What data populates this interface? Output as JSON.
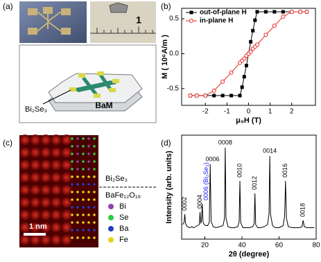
{
  "panel_labels": [
    "(a)",
    "(b)",
    "(c)",
    "(d)"
  ],
  "panel_a": {
    "ruler_label": "1",
    "substrate_label": "BaM",
    "film_label": "Bi₂Se₃"
  },
  "panel_c": {
    "top_layer": "Bi₂Se₃",
    "bottom_layer": "BaFe₁₂O₁₉",
    "scale_bar": "1 nm",
    "legend": [
      {
        "name": "Bi",
        "color": "#8e44ad"
      },
      {
        "name": "Se",
        "color": "#2ecc40"
      },
      {
        "name": "Ba",
        "color": "#1f3fbf"
      },
      {
        "name": "Fe",
        "color": "#e6d21a"
      }
    ]
  },
  "chart_data": [
    {
      "type": "line",
      "xlabel": "μ₀H (T)",
      "ylabel": "M ( 10⁶A/m )",
      "x": [
        -2.7,
        -2.4,
        -2,
        -1.6,
        -1.2,
        -0.8,
        -0.4,
        -0.3,
        -0.2,
        -0.1,
        0,
        0.1,
        0.2,
        0.3,
        0.4,
        0.8,
        1.2,
        1.6,
        2,
        2.4,
        2.7
      ],
      "series": [
        {
          "name": "out-of-plane H",
          "color": "#000000",
          "marker": "square",
          "values": [
            -0.6,
            -0.6,
            -0.6,
            -0.6,
            -0.6,
            -0.6,
            -0.6,
            -0.48,
            -0.33,
            -0.17,
            0,
            0.17,
            0.33,
            0.48,
            0.6,
            0.6,
            0.6,
            0.6,
            0.6,
            0.6,
            0.6
          ]
        },
        {
          "name": "in-plane H",
          "color": "#e8231f",
          "marker": "circle",
          "values": [
            -0.6,
            -0.6,
            -0.6,
            -0.53,
            -0.4,
            -0.27,
            -0.13,
            -0.1,
            -0.07,
            -0.03,
            0,
            0.03,
            0.07,
            0.1,
            0.13,
            0.27,
            0.4,
            0.53,
            0.6,
            0.6,
            0.6
          ]
        }
      ],
      "xlim": [
        -3.1,
        3.1
      ],
      "xticks": [
        -2,
        -1,
        0,
        1,
        2
      ],
      "ylim": [
        -0.74,
        0.65
      ],
      "yticks": [
        -0.5,
        {
          "value": 0,
          "label": "0.0"
        },
        0.5
      ],
      "legend": "upper left"
    },
    {
      "type": "line",
      "xlabel": "2θ (degree)",
      "ylabel": "Intensity (arb. units)",
      "color": "#000000",
      "x": [
        8,
        8.8,
        9.2,
        9.6,
        10.5,
        12,
        13,
        14,
        15,
        16,
        17,
        17.4,
        17.8,
        18.2,
        18.6,
        19,
        19.6,
        20.5,
        21.5,
        22.4,
        22.9,
        23.4,
        24.5,
        26,
        28,
        29.8,
        30.6,
        31,
        31.4,
        32.5,
        34,
        36,
        37.8,
        38.5,
        38.9,
        39.3,
        40.5,
        42,
        44,
        45.8,
        46.6,
        47,
        47.4,
        48.5,
        50,
        52,
        53.8,
        54.6,
        55,
        55.4,
        56.5,
        58,
        60,
        62.2,
        63,
        63.5,
        64,
        65,
        67,
        69,
        71,
        72.4,
        73,
        73.6,
        75,
        77,
        79
      ],
      "values": [
        14,
        16,
        24,
        15,
        12,
        11,
        12,
        11,
        12,
        13,
        14,
        26,
        15,
        18,
        34,
        17,
        14,
        13,
        13,
        16,
        72,
        17,
        12,
        11,
        12,
        13,
        20,
        88,
        20,
        12,
        11,
        11,
        12,
        17,
        56,
        16,
        11,
        11,
        11,
        12,
        15,
        44,
        14,
        11,
        11,
        12,
        14,
        24,
        80,
        24,
        13,
        11,
        11,
        13,
        22,
        56,
        20,
        12,
        11,
        11,
        11,
        12,
        18,
        12,
        11,
        11,
        11
      ],
      "xlim": [
        7.5,
        80
      ],
      "xticks": [
        20,
        40,
        60,
        80
      ],
      "ylim": [
        0,
        100
      ],
      "annotations": [
        {
          "text": "0002",
          "x": 9.2,
          "vertical": true
        },
        {
          "text": "0004",
          "x": 17.4,
          "vertical": true
        },
        {
          "text": "0006 (Bi₂Se₃)",
          "x": 18.6,
          "vertical": true,
          "color": "#1a1aff"
        },
        {
          "text": "0006",
          "x": 22.9,
          "vertical": false
        },
        {
          "text": "0008",
          "x": 31,
          "vertical": false
        },
        {
          "text": "0010",
          "x": 38.9,
          "vertical": true
        },
        {
          "text": "0012",
          "x": 47,
          "vertical": true
        },
        {
          "text": "0014",
          "x": 55,
          "vertical": false
        },
        {
          "text": "0016",
          "x": 63.5,
          "vertical": true
        },
        {
          "text": "0018",
          "x": 73,
          "vertical": true
        }
      ]
    }
  ]
}
